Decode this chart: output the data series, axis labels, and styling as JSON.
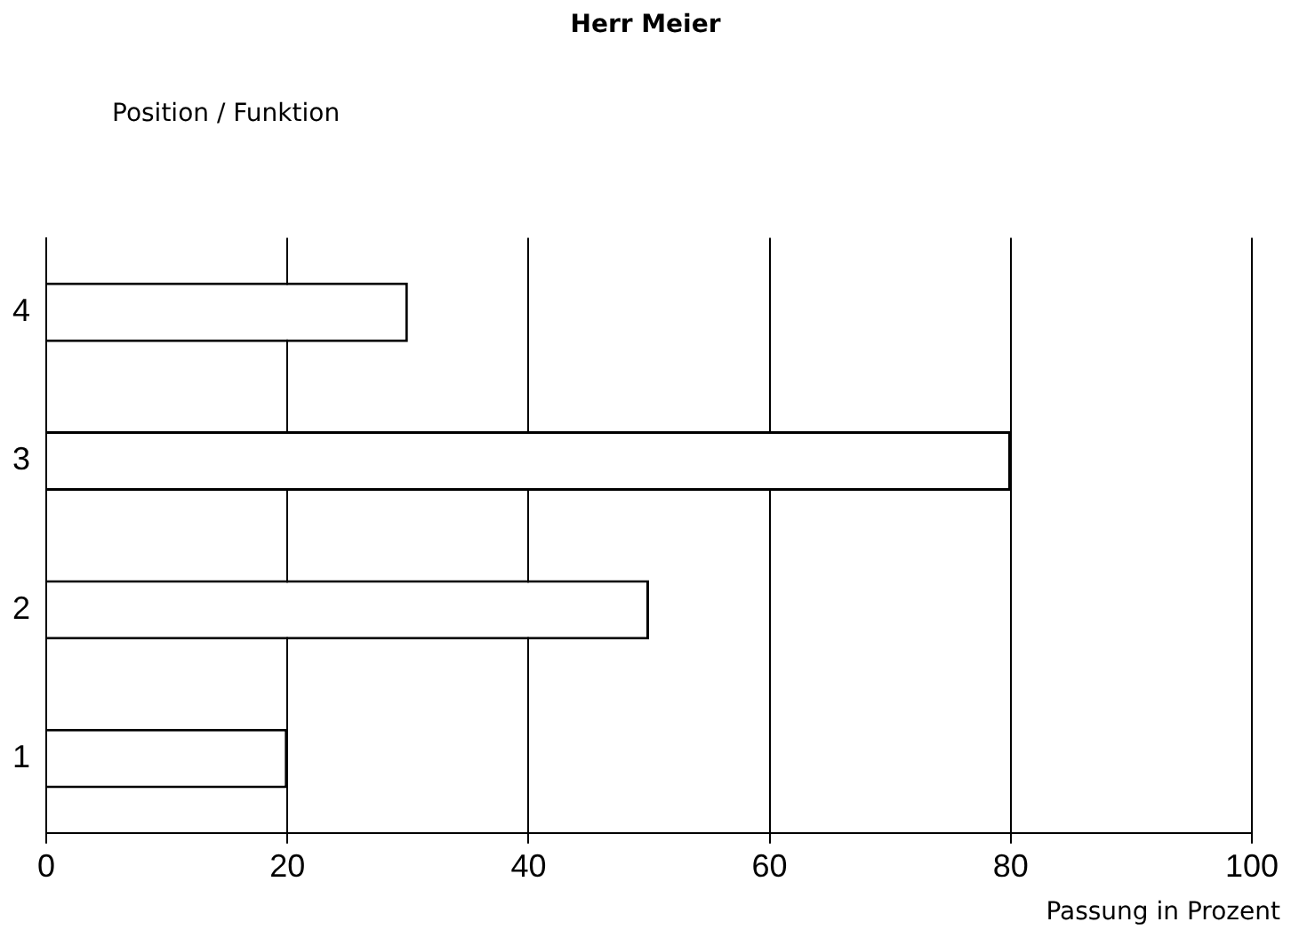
{
  "chart_data": {
    "type": "bar",
    "orientation": "horizontal",
    "title": "Herr Meier",
    "ylabel": "Position / Funktion",
    "xlabel": "Passung in Prozent",
    "categories": [
      "4",
      "3",
      "2",
      "1"
    ],
    "values": [
      30,
      80,
      50,
      20
    ],
    "color": "#ffffff",
    "xlim": [
      0,
      100
    ],
    "xticks": [
      0,
      20,
      40,
      60,
      80,
      100
    ],
    "grid": "x",
    "legend": false
  }
}
